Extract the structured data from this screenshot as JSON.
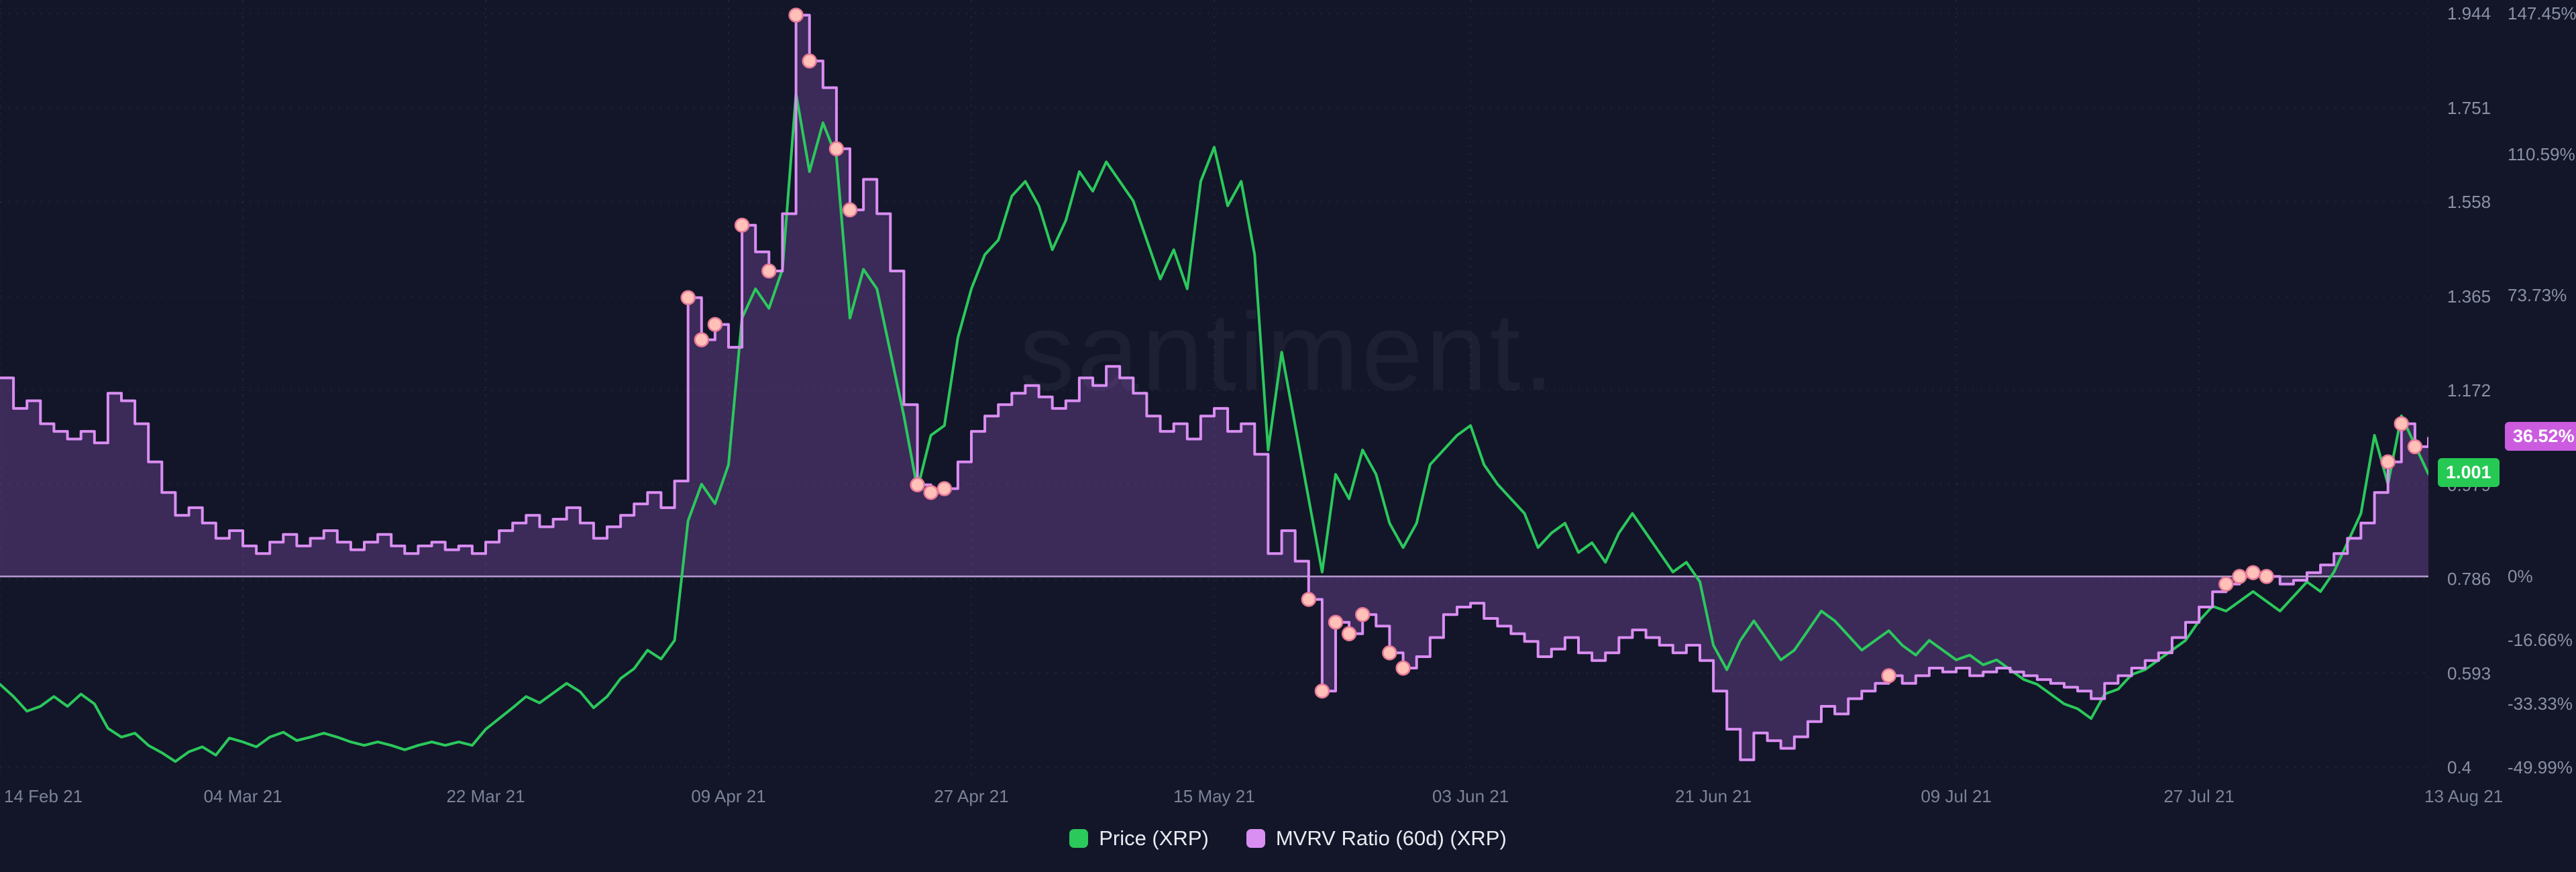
{
  "watermark": "santiment.",
  "legend_items": [
    {
      "label": "Price (XRP)",
      "color": "#2bc85c"
    },
    {
      "label": "MVRV Ratio (60d) (XRP)",
      "color": "#d98ef2"
    }
  ],
  "badges": {
    "price": {
      "text": "1.001",
      "value": 1.001,
      "bg": "#26c954",
      "fg": "#ffffff"
    },
    "mvrv": {
      "text": "36.52%",
      "value": 36.52,
      "bg": "#cb5ce0",
      "fg": "#ffffff"
    }
  },
  "chart_data": {
    "type": "line",
    "title": "",
    "x_axis": {
      "span_days": 180,
      "ticks": [
        {
          "label": "14 Feb 21",
          "day": 0
        },
        {
          "label": "04 Mar 21",
          "day": 18
        },
        {
          "label": "22 Mar 21",
          "day": 36
        },
        {
          "label": "09 Apr 21",
          "day": 54
        },
        {
          "label": "27 Apr 21",
          "day": 72
        },
        {
          "label": "15 May 21",
          "day": 90
        },
        {
          "label": "03 Jun 21",
          "day": 109
        },
        {
          "label": "21 Jun 21",
          "day": 127
        },
        {
          "label": "09 Jul 21",
          "day": 145
        },
        {
          "label": "27 Jul 21",
          "day": 163
        },
        {
          "label": "13 Aug 21",
          "day": 180
        }
      ]
    },
    "price_axis": {
      "min": 0.4,
      "max": 1.944,
      "ticks": [
        "1.944",
        "1.751",
        "1.558",
        "1.365",
        "1.172",
        "0.979",
        "0.786",
        "0.593",
        "0.4"
      ]
    },
    "percent_axis": {
      "min": -49.99,
      "max": 147.45,
      "baseline": 0,
      "baseline_color": "#c9abe4",
      "ticks": [
        "147.45%",
        "110.59%",
        "73.73%",
        "36.86%",
        "0%",
        "-16.66%",
        "-33.33%",
        "-49.99%"
      ]
    },
    "series": [
      {
        "name": "Price (XRP)",
        "style": "line",
        "axis": "price",
        "color": "#2bc85c",
        "values": [
          0.57,
          0.545,
          0.515,
          0.525,
          0.545,
          0.525,
          0.55,
          0.53,
          0.48,
          0.462,
          0.47,
          0.445,
          0.43,
          0.412,
          0.432,
          0.442,
          0.425,
          0.46,
          0.452,
          0.442,
          0.462,
          0.472,
          0.455,
          0.462,
          0.47,
          0.462,
          0.452,
          0.445,
          0.452,
          0.445,
          0.436,
          0.445,
          0.452,
          0.445,
          0.452,
          0.445,
          0.478,
          0.5,
          0.522,
          0.545,
          0.532,
          0.552,
          0.572,
          0.555,
          0.522,
          0.545,
          0.582,
          0.602,
          0.64,
          0.622,
          0.66,
          0.905,
          0.98,
          0.94,
          1.02,
          1.32,
          1.38,
          1.34,
          1.42,
          1.78,
          1.62,
          1.72,
          1.65,
          1.32,
          1.42,
          1.38,
          1.25,
          1.12,
          0.97,
          1.08,
          1.1,
          1.28,
          1.38,
          1.45,
          1.48,
          1.57,
          1.6,
          1.55,
          1.46,
          1.52,
          1.62,
          1.58,
          1.64,
          1.6,
          1.56,
          1.48,
          1.4,
          1.46,
          1.38,
          1.6,
          1.67,
          1.55,
          1.6,
          1.45,
          1.05,
          1.25,
          1.1,
          0.95,
          0.8,
          1.0,
          0.95,
          1.05,
          1.0,
          0.9,
          0.85,
          0.9,
          1.02,
          1.05,
          1.08,
          1.1,
          1.02,
          0.98,
          0.95,
          0.92,
          0.85,
          0.88,
          0.9,
          0.84,
          0.86,
          0.82,
          0.88,
          0.92,
          0.88,
          0.84,
          0.8,
          0.82,
          0.78,
          0.65,
          0.6,
          0.66,
          0.7,
          0.66,
          0.62,
          0.64,
          0.68,
          0.72,
          0.7,
          0.67,
          0.64,
          0.66,
          0.68,
          0.65,
          0.63,
          0.66,
          0.64,
          0.62,
          0.63,
          0.61,
          0.62,
          0.6,
          0.58,
          0.57,
          0.55,
          0.53,
          0.52,
          0.5,
          0.55,
          0.56,
          0.59,
          0.6,
          0.62,
          0.64,
          0.66,
          0.7,
          0.73,
          0.72,
          0.74,
          0.76,
          0.74,
          0.72,
          0.75,
          0.78,
          0.76,
          0.8,
          0.86,
          0.92,
          1.08,
          0.98,
          1.12,
          1.06,
          1.001
        ]
      },
      {
        "name": "MVRV Ratio (60d) (XRP)",
        "style": "step-area",
        "axis": "percent",
        "color": "#d98ef2",
        "fill": "rgba(168,98,220,0.28)",
        "marker_fill": "#ffc0b8",
        "marker_stroke": "#e87a97",
        "marker_days": [
          51,
          52,
          53,
          55,
          57,
          59,
          60,
          62,
          63,
          68,
          69,
          70,
          97,
          98,
          99,
          100,
          101,
          103,
          104,
          140,
          165,
          166,
          167,
          168,
          177,
          178,
          179
        ],
        "values": [
          52,
          44,
          46,
          40,
          38,
          36,
          38,
          35,
          48,
          46,
          40,
          30,
          22,
          16,
          18,
          14,
          10,
          12,
          8,
          6,
          9,
          11,
          8,
          10,
          12,
          9,
          7,
          9,
          11,
          8,
          6,
          8,
          9,
          7,
          8,
          6,
          9,
          12,
          14,
          16,
          13,
          15,
          18,
          14,
          10,
          13,
          16,
          19,
          22,
          18,
          25,
          73,
          62,
          66,
          60,
          92,
          85,
          80,
          95,
          147,
          135,
          128,
          112,
          96,
          104,
          95,
          80,
          45,
          24,
          22,
          23,
          30,
          38,
          42,
          45,
          48,
          50,
          47,
          44,
          46,
          52,
          50,
          55,
          52,
          48,
          42,
          38,
          40,
          36,
          42,
          44,
          38,
          40,
          32,
          6,
          12,
          4,
          -6,
          -30,
          -12,
          -15,
          -10,
          -13,
          -20,
          -24,
          -21,
          -16,
          -10,
          -8,
          -7,
          -11,
          -13,
          -15,
          -17,
          -21,
          -19,
          -16,
          -20,
          -22,
          -20,
          -16,
          -14,
          -16,
          -18,
          -20,
          -18,
          -22,
          -30,
          -40,
          -48,
          -41,
          -43,
          -45,
          -42,
          -38,
          -34,
          -36,
          -32,
          -30,
          -28,
          -26,
          -28,
          -26,
          -24,
          -25,
          -24,
          -26,
          -25,
          -24,
          -25,
          -26,
          -27,
          -28,
          -29,
          -30,
          -32,
          -28,
          -26,
          -24,
          -22,
          -20,
          -16,
          -12,
          -8,
          -4,
          -2,
          0,
          1,
          0,
          -2,
          -1,
          1,
          3,
          6,
          10,
          14,
          22,
          30,
          40,
          34,
          36.52
        ]
      }
    ]
  }
}
